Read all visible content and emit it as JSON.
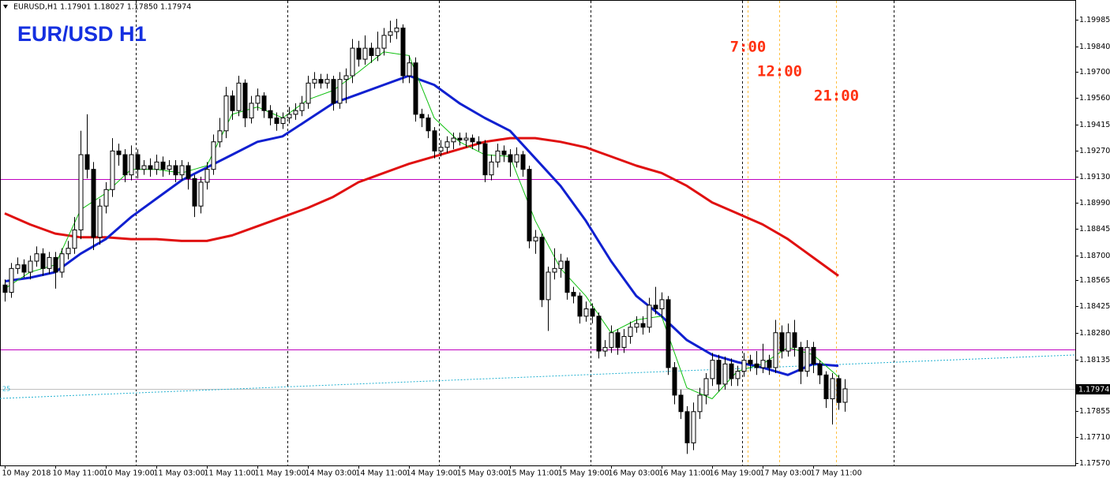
{
  "chart_data": {
    "type": "candlestick",
    "title": "EUR/USD H1",
    "subtitle": "EURUSD,H1  1.17901 1.18027 1.17850 1.17974",
    "categories": [
      "10 May 2018",
      null,
      null,
      null,
      null,
      null,
      null,
      null,
      "10 May 11:00",
      null,
      null,
      null,
      null,
      null,
      null,
      null,
      "10 May 19:00",
      null,
      null,
      null,
      null,
      null,
      null,
      null,
      "11 May 03:00",
      null,
      null,
      null,
      null,
      null,
      null,
      null,
      "11 May 11:00",
      null,
      null,
      null,
      null,
      null,
      null,
      null,
      "11 May 19:00",
      null,
      null,
      null,
      null,
      null,
      null,
      null,
      "14 May 03:00",
      null,
      null,
      null,
      null,
      null,
      null,
      null,
      "14 May 11:00",
      null,
      null,
      null,
      null,
      null,
      null,
      null,
      "14 May 19:00",
      null,
      null,
      null,
      null,
      null,
      null,
      null,
      "15 May 03:00",
      null,
      null,
      null,
      null,
      null,
      null,
      null,
      "15 May 11:00",
      null,
      null,
      null,
      null,
      null,
      null,
      null,
      "15 May 19:00",
      null,
      null,
      null,
      null,
      null,
      null,
      null,
      "16 May 03:00",
      null,
      null,
      null,
      null,
      null,
      null,
      null,
      "16 May 11:00",
      null,
      null,
      null,
      null,
      null,
      null,
      null,
      "16 May 19:00",
      null,
      null,
      null,
      null,
      null,
      null,
      null,
      "17 May 03:00",
      null,
      null,
      null,
      null,
      null,
      null,
      null,
      "17 May 11:00",
      null,
      null,
      null,
      null,
      null
    ],
    "ohlc": [
      [
        1.1854,
        1.1857,
        1.1845,
        1.185
      ],
      [
        1.185,
        1.1866,
        1.1847,
        1.1863
      ],
      [
        1.1863,
        1.1869,
        1.186,
        1.1865
      ],
      [
        1.1865,
        1.1868,
        1.1858,
        1.1861
      ],
      [
        1.1861,
        1.187,
        1.1857,
        1.1867
      ],
      [
        1.1867,
        1.1875,
        1.1864,
        1.1871
      ],
      [
        1.1871,
        1.1874,
        1.1859,
        1.1863
      ],
      [
        1.1863,
        1.1872,
        1.186,
        1.1869
      ],
      [
        1.1869,
        1.1872,
        1.1852,
        1.1861
      ],
      [
        1.1861,
        1.1874,
        1.1858,
        1.1871
      ],
      [
        1.1871,
        1.1878,
        1.1868,
        1.1874
      ],
      [
        1.1874,
        1.1891,
        1.1871,
        1.1884
      ],
      [
        1.1884,
        1.1938,
        1.1879,
        1.1925
      ],
      [
        1.1925,
        1.1947,
        1.1912,
        1.1917
      ],
      [
        1.1917,
        1.1921,
        1.1873,
        1.188
      ],
      [
        1.188,
        1.1901,
        1.1876,
        1.1897
      ],
      [
        1.1897,
        1.191,
        1.1893,
        1.1906
      ],
      [
        1.1906,
        1.1934,
        1.1902,
        1.1927
      ],
      [
        1.1927,
        1.1931,
        1.1919,
        1.1925
      ],
      [
        1.1925,
        1.1928,
        1.191,
        1.1914
      ],
      [
        1.1914,
        1.193,
        1.1911,
        1.1925
      ],
      [
        1.1925,
        1.1928,
        1.1912,
        1.1917
      ],
      [
        1.1917,
        1.1922,
        1.1914,
        1.1919
      ],
      [
        1.1919,
        1.1923,
        1.1913,
        1.1917
      ],
      [
        1.1917,
        1.1925,
        1.1914,
        1.1921
      ],
      [
        1.1921,
        1.1924,
        1.1913,
        1.1917
      ],
      [
        1.1917,
        1.1922,
        1.1914,
        1.1919
      ],
      [
        1.1919,
        1.1922,
        1.191,
        1.1914
      ],
      [
        1.1914,
        1.1922,
        1.1911,
        1.1919
      ],
      [
        1.1919,
        1.1921,
        1.1906,
        1.1912
      ],
      [
        1.1912,
        1.1914,
        1.1891,
        1.1897
      ],
      [
        1.1897,
        1.1913,
        1.1893,
        1.191
      ],
      [
        1.191,
        1.1921,
        1.1906,
        1.1917
      ],
      [
        1.1917,
        1.1936,
        1.1914,
        1.1932
      ],
      [
        1.1932,
        1.1945,
        1.1929,
        1.1938
      ],
      [
        1.1938,
        1.1962,
        1.1934,
        1.1957
      ],
      [
        1.1957,
        1.196,
        1.1944,
        1.1949
      ],
      [
        1.1949,
        1.1968,
        1.1946,
        1.1964
      ],
      [
        1.1964,
        1.1966,
        1.194,
        1.1945
      ],
      [
        1.1945,
        1.1957,
        1.1942,
        1.1953
      ],
      [
        1.1953,
        1.1961,
        1.1949,
        1.1957
      ],
      [
        1.1957,
        1.1959,
        1.1945,
        1.1949
      ],
      [
        1.1949,
        1.1952,
        1.1941,
        1.1945
      ],
      [
        1.1945,
        1.1948,
        1.1938,
        1.1942
      ],
      [
        1.1942,
        1.1948,
        1.1939,
        1.1945
      ],
      [
        1.1945,
        1.1951,
        1.1942,
        1.1947
      ],
      [
        1.1947,
        1.1953,
        1.1944,
        1.1949
      ],
      [
        1.1949,
        1.1957,
        1.1946,
        1.1953
      ],
      [
        1.1953,
        1.1968,
        1.195,
        1.1964
      ],
      [
        1.1964,
        1.197,
        1.1961,
        1.1966
      ],
      [
        1.1966,
        1.1969,
        1.1961,
        1.1964
      ],
      [
        1.1964,
        1.1969,
        1.1961,
        1.1966
      ],
      [
        1.1966,
        1.1968,
        1.1949,
        1.1953
      ],
      [
        1.1953,
        1.197,
        1.195,
        1.1966
      ],
      [
        1.1966,
        1.1972,
        1.1953,
        1.1968
      ],
      [
        1.1968,
        1.1988,
        1.1964,
        1.1983
      ],
      [
        1.1983,
        1.1987,
        1.1973,
        1.1977
      ],
      [
        1.1977,
        1.199,
        1.1974,
        1.1983
      ],
      [
        1.1983,
        1.1986,
        1.1975,
        1.1979
      ],
      [
        1.1979,
        1.1992,
        1.1976,
        1.1983
      ],
      [
        1.1983,
        1.1994,
        1.1979,
        1.199
      ],
      [
        1.199,
        1.1998,
        1.1986,
        1.1992
      ],
      [
        1.1992,
        1.1999,
        1.1988,
        1.1994
      ],
      [
        1.1994,
        1.1996,
        1.1964,
        1.1968
      ],
      [
        1.1968,
        1.1979,
        1.1964,
        1.1975
      ],
      [
        1.1975,
        1.1978,
        1.1943,
        1.1947
      ],
      [
        1.1947,
        1.195,
        1.194,
        1.1945
      ],
      [
        1.1945,
        1.1947,
        1.1934,
        1.1938
      ],
      [
        1.1938,
        1.194,
        1.1923,
        1.1927
      ],
      [
        1.1927,
        1.1933,
        1.1924,
        1.1929
      ],
      [
        1.1929,
        1.1935,
        1.1926,
        1.1932
      ],
      [
        1.1932,
        1.1937,
        1.1928,
        1.1934
      ],
      [
        1.1934,
        1.1937,
        1.193,
        1.1933
      ],
      [
        1.1933,
        1.1937,
        1.1929,
        1.1934
      ],
      [
        1.1934,
        1.1936,
        1.1928,
        1.1932
      ],
      [
        1.1932,
        1.1935,
        1.1927,
        1.1931
      ],
      [
        1.1931,
        1.1933,
        1.191,
        1.1914
      ],
      [
        1.1914,
        1.1925,
        1.1911,
        1.1921
      ],
      [
        1.1921,
        1.1931,
        1.1918,
        1.1927
      ],
      [
        1.1927,
        1.193,
        1.1921,
        1.1925
      ],
      [
        1.1925,
        1.1928,
        1.1913,
        1.1921
      ],
      [
        1.1921,
        1.1929,
        1.1918,
        1.1925
      ],
      [
        1.1925,
        1.1927,
        1.1913,
        1.1917
      ],
      [
        1.1917,
        1.1919,
        1.1874,
        1.1878
      ],
      [
        1.1878,
        1.1884,
        1.1871,
        1.188
      ],
      [
        1.188,
        1.1882,
        1.1842,
        1.1846
      ],
      [
        1.1846,
        1.1864,
        1.1829,
        1.1861
      ],
      [
        1.1861,
        1.1874,
        1.1857,
        1.1863
      ],
      [
        1.1863,
        1.1871,
        1.1858,
        1.1867
      ],
      [
        1.1867,
        1.1869,
        1.1846,
        1.185
      ],
      [
        1.185,
        1.1853,
        1.1844,
        1.1848
      ],
      [
        1.1848,
        1.185,
        1.1833,
        1.1837
      ],
      [
        1.1837,
        1.1845,
        1.1834,
        1.1841
      ],
      [
        1.1841,
        1.1844,
        1.1833,
        1.1837
      ],
      [
        1.1837,
        1.1839,
        1.1814,
        1.1818
      ],
      [
        1.1818,
        1.1824,
        1.1815,
        1.182
      ],
      [
        1.182,
        1.1832,
        1.1817,
        1.1828
      ],
      [
        1.1828,
        1.183,
        1.1816,
        1.182
      ],
      [
        1.182,
        1.183,
        1.1817,
        1.1826
      ],
      [
        1.1826,
        1.1834,
        1.1822,
        1.1831
      ],
      [
        1.1831,
        1.1837,
        1.1828,
        1.1833
      ],
      [
        1.1833,
        1.1837,
        1.1827,
        1.1831
      ],
      [
        1.1831,
        1.1847,
        1.1828,
        1.1843
      ],
      [
        1.1843,
        1.1853,
        1.1838,
        1.1841
      ],
      [
        1.1841,
        1.185,
        1.1836,
        1.1846
      ],
      [
        1.1846,
        1.1848,
        1.1805,
        1.1809
      ],
      [
        1.1809,
        1.1812,
        1.1789,
        1.1794
      ],
      [
        1.1794,
        1.1797,
        1.1781,
        1.1785
      ],
      [
        1.1785,
        1.1788,
        1.1762,
        1.1768
      ],
      [
        1.1768,
        1.179,
        1.1764,
        1.1785
      ],
      [
        1.1785,
        1.1798,
        1.1781,
        1.1794
      ],
      [
        1.1794,
        1.1806,
        1.1789,
        1.1803
      ],
      [
        1.1803,
        1.1817,
        1.1799,
        1.1813
      ],
      [
        1.1813,
        1.1816,
        1.1796,
        1.18
      ],
      [
        1.18,
        1.1815,
        1.1797,
        1.1811
      ],
      [
        1.1811,
        1.1814,
        1.1799,
        1.1803
      ],
      [
        1.1803,
        1.181,
        1.1799,
        1.1807
      ],
      [
        1.1807,
        1.1817,
        1.1804,
        1.1813
      ],
      [
        1.1813,
        1.1816,
        1.1807,
        1.1811
      ],
      [
        1.1811,
        1.1818,
        1.1805,
        1.1809
      ],
      [
        1.1809,
        1.1822,
        1.1806,
        1.1813
      ],
      [
        1.1813,
        1.1816,
        1.1805,
        1.1809
      ],
      [
        1.1809,
        1.1835,
        1.1806,
        1.1828
      ],
      [
        1.1828,
        1.1832,
        1.1814,
        1.1818
      ],
      [
        1.1818,
        1.1833,
        1.1815,
        1.1828
      ],
      [
        1.1828,
        1.1835,
        1.1815,
        1.182
      ],
      [
        1.182,
        1.1823,
        1.18,
        1.1807
      ],
      [
        1.1807,
        1.1824,
        1.1804,
        1.182
      ],
      [
        1.182,
        1.1823,
        1.1806,
        1.1811
      ],
      [
        1.1811,
        1.1813,
        1.18,
        1.1805
      ],
      [
        1.1805,
        1.1807,
        1.1787,
        1.1792
      ],
      [
        1.1792,
        1.1806,
        1.1778,
        1.1803
      ],
      [
        1.1803,
        1.1805,
        1.1786,
        1.179
      ],
      [
        1.17901,
        1.18027,
        1.1785,
        1.17974
      ]
    ],
    "up_color": "#ffffff",
    "down_color": "#000000",
    "lines": [
      {
        "color": "#e01010",
        "width": 3,
        "x": [
          0,
          4,
          8,
          12,
          16,
          20,
          24,
          28,
          32,
          36,
          40,
          44,
          48,
          52,
          56,
          60,
          64,
          68,
          72,
          76,
          80,
          84,
          88,
          92,
          96,
          100,
          104,
          108,
          112,
          116,
          120,
          124,
          128,
          132
        ],
        "values": [
          1.1893,
          1.1887,
          1.1882,
          1.188,
          1.188,
          1.1879,
          1.1879,
          1.1878,
          1.1878,
          1.1881,
          1.1886,
          1.1891,
          1.1896,
          1.1902,
          1.191,
          1.1915,
          1.192,
          1.1924,
          1.1928,
          1.1932,
          1.1934,
          1.1934,
          1.1932,
          1.1929,
          1.1924,
          1.1919,
          1.1915,
          1.1908,
          1.1899,
          1.1893,
          1.1887,
          1.1879,
          1.1869,
          1.1859
        ]
      },
      {
        "color": "#1020d0",
        "width": 3,
        "x": [
          0,
          4,
          8,
          12,
          16,
          20,
          24,
          28,
          32,
          36,
          40,
          44,
          48,
          52,
          56,
          60,
          64,
          68,
          72,
          76,
          80,
          84,
          88,
          92,
          96,
          100,
          104,
          108,
          112,
          116,
          120,
          124,
          128,
          132
        ],
        "values": [
          1.1856,
          1.1858,
          1.1861,
          1.1871,
          1.1879,
          1.1891,
          1.1901,
          1.1911,
          1.1918,
          1.1925,
          1.1932,
          1.1935,
          1.1944,
          1.1953,
          1.1958,
          1.1963,
          1.1968,
          1.1963,
          1.1953,
          1.1945,
          1.1938,
          1.1923,
          1.1908,
          1.1889,
          1.1867,
          1.1848,
          1.1837,
          1.1824,
          1.1816,
          1.1812,
          1.1809,
          1.1805,
          1.1811,
          1.181
        ]
      },
      {
        "color": "#10c010",
        "width": 1,
        "x": [
          0,
          4,
          8,
          12,
          16,
          20,
          24,
          28,
          32,
          36,
          40,
          44,
          48,
          52,
          56,
          60,
          64,
          68,
          72,
          76,
          80,
          84,
          88,
          92,
          96,
          100,
          104,
          108,
          112,
          116,
          120,
          124,
          128,
          132
        ],
        "values": [
          1.1852,
          1.1861,
          1.1865,
          1.1895,
          1.1904,
          1.1917,
          1.1917,
          1.1915,
          1.1919,
          1.1947,
          1.1951,
          1.1945,
          1.1955,
          1.196,
          1.197,
          1.1981,
          1.1979,
          1.1945,
          1.1932,
          1.1925,
          1.1924,
          1.1889,
          1.1863,
          1.1848,
          1.1828,
          1.1835,
          1.1837,
          1.1798,
          1.1792,
          1.1807,
          1.1811,
          1.182,
          1.1816,
          1.1804
        ]
      }
    ],
    "hlines": [
      {
        "value": 1.19117,
        "color": "#c000c0"
      },
      {
        "value": 1.18189,
        "color": "#c000c0"
      }
    ],
    "current_price": {
      "value": 1.17974,
      "label": "1.17974",
      "color": "#c0c0c0"
    },
    "trendline": {
      "name": "25",
      "color": "#20b0d0",
      "x": [
        -0.75,
        169.5
      ],
      "values": [
        1.17922,
        1.18159
      ]
    },
    "day_separators": [
      20.75,
      44.75,
      68.75,
      92.75,
      116.75,
      140.75
    ],
    "time_markers": [
      {
        "value": 117.6,
        "label": "7:00"
      },
      {
        "value": 122.6,
        "label": "12:00"
      },
      {
        "value": 131.6,
        "label": "21:00"
      }
    ],
    "time_marker_color": "#ffc040",
    "xlim": [
      -0.75,
      169.5
    ],
    "ylim": [
      1.17557,
      1.20084
    ],
    "yticks": [
      1.19985,
      {
        "value": 1.1984,
        "label": "1.19840"
      },
      {
        "value": 1.197,
        "label": "1.19700"
      },
      {
        "value": 1.1956,
        "label": "1.19560"
      },
      1.19415,
      {
        "value": 1.1927,
        "label": "1.19270"
      },
      {
        "value": 1.1913,
        "label": "1.19130"
      },
      {
        "value": 1.1899,
        "label": "1.18990"
      },
      1.18845,
      {
        "value": 1.187,
        "label": "1.18700"
      },
      1.18565,
      1.18425,
      {
        "value": 1.1828,
        "label": "1.18280"
      },
      1.18135,
      1.17855,
      {
        "value": 1.1771,
        "label": "1.17710"
      },
      {
        "value": 1.1757,
        "label": "1.17570"
      }
    ]
  }
}
